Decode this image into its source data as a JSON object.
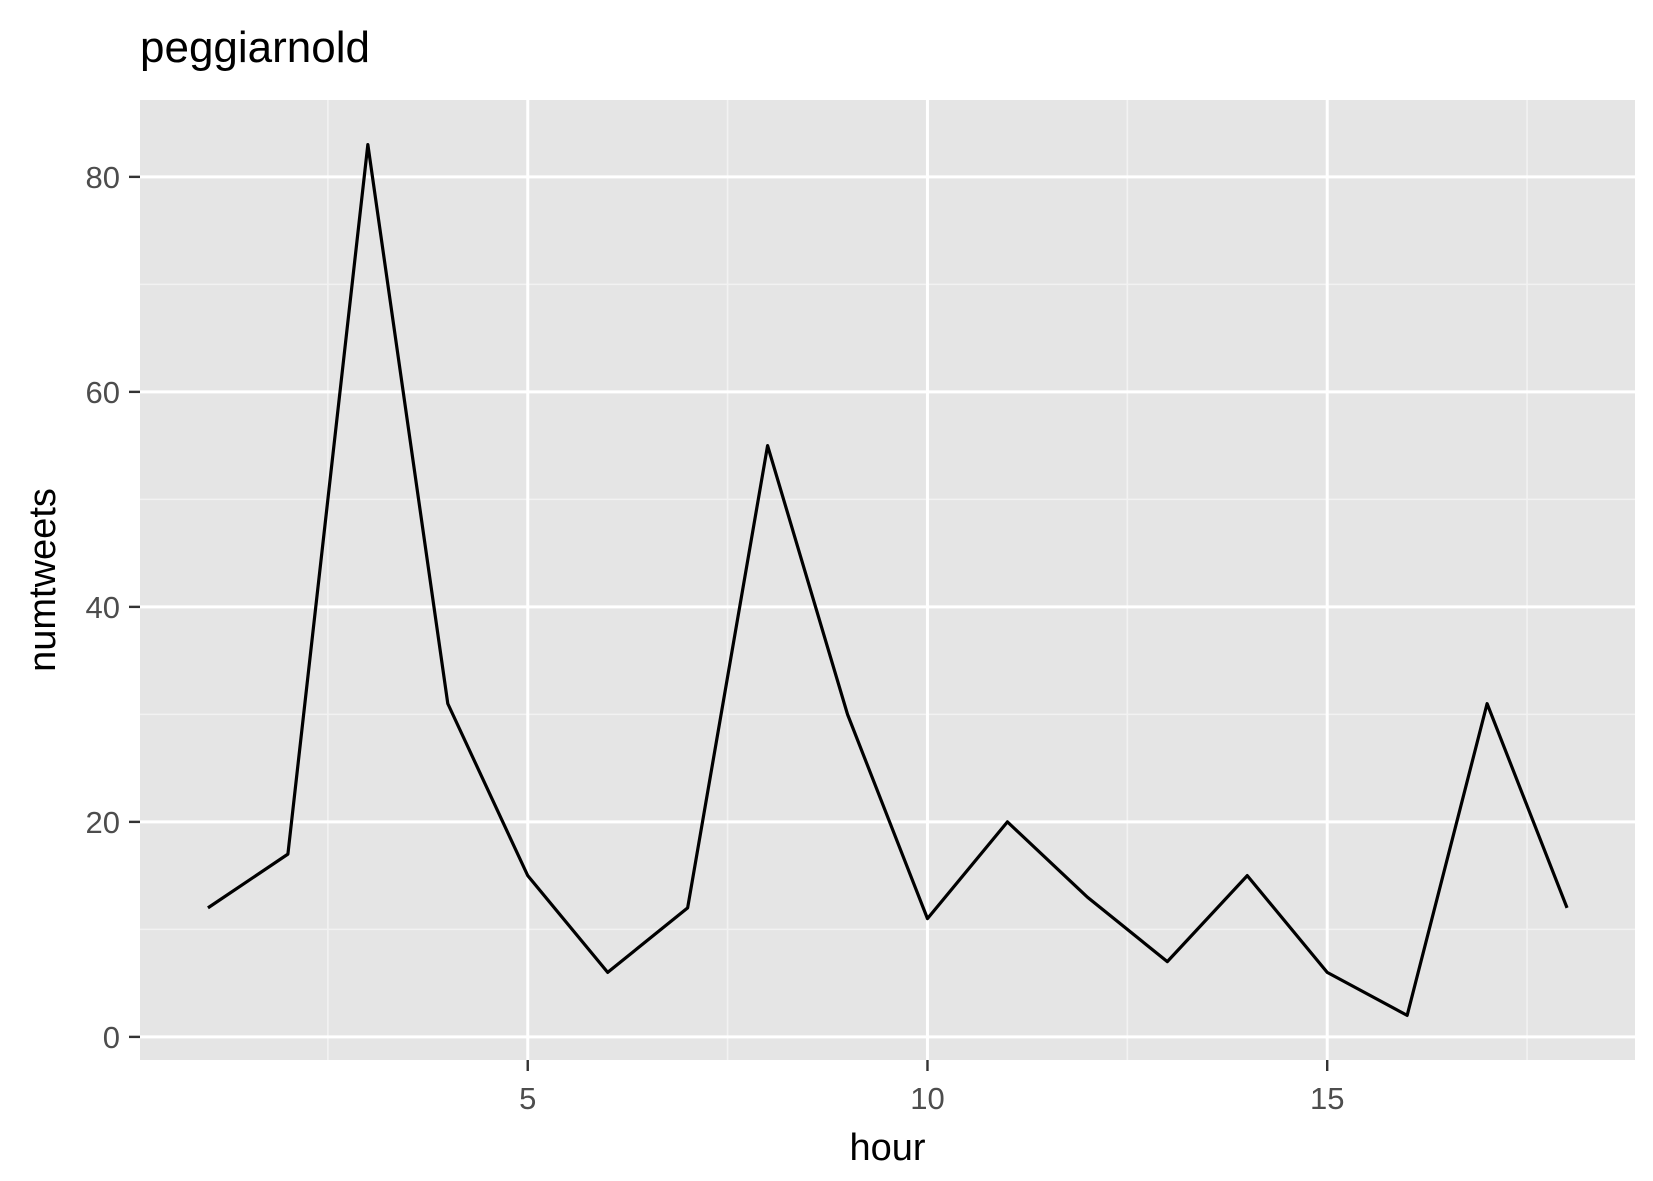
{
  "chart_data": {
    "type": "line",
    "title": "peggiarnold",
    "xlabel": "hour",
    "ylabel": "numtweets",
    "x": [
      1,
      2,
      3,
      4,
      5,
      6,
      7,
      8,
      9,
      10,
      11,
      12,
      13,
      14,
      15,
      16,
      17,
      18
    ],
    "series": [
      {
        "values": [
          12,
          17,
          83,
          31,
          15,
          6,
          12,
          55,
          30,
          11,
          20,
          13,
          7,
          15,
          6,
          2,
          31,
          12
        ]
      }
    ],
    "xlim": [
      0.15,
      18.85
    ],
    "ylim": [
      -2.15,
      87.15
    ],
    "x_ticks": [
      5,
      10,
      15
    ],
    "y_ticks": [
      0,
      20,
      40,
      60,
      80
    ],
    "x_tick_labels": [
      "5",
      "10",
      "15"
    ],
    "y_tick_labels": [
      "0",
      "20",
      "40",
      "60",
      "80"
    ],
    "grid": true,
    "legend": "none",
    "colors": {
      "panel_background": "#e5e5e5",
      "grid_major": "#ffffff",
      "grid_minor": "#f2f2f2",
      "line": "#000000",
      "tick_label": "#4d4d4d",
      "tick_mark": "#333333"
    }
  }
}
